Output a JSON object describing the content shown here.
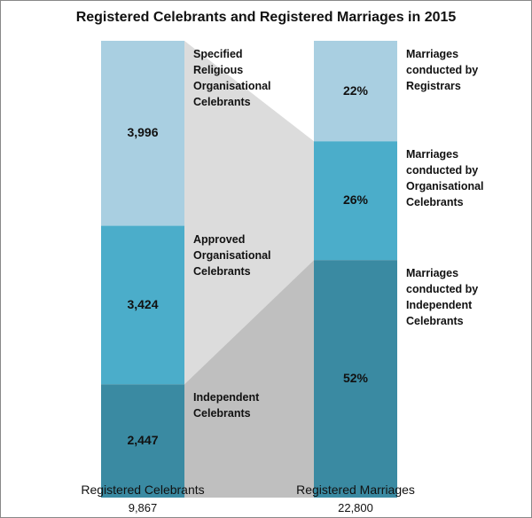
{
  "chart_data": {
    "type": "stacked_bar_100",
    "title": "Registered Celebrants and Registered Marriages in 2015",
    "bars": [
      {
        "label": "Registered Celebrants",
        "total": 9867,
        "total_label": "9,867",
        "segments": [
          {
            "name": "Specified Religious Organisational Celebrants",
            "value": 3996,
            "value_label": "3,996",
            "color": "#a9cfe1"
          },
          {
            "name": "Approved Organisational Celebrants",
            "value": 3424,
            "value_label": "3,424",
            "color": "#4badca"
          },
          {
            "name": "Independent Celebrants",
            "value": 2447,
            "value_label": "2,447",
            "color": "#3a8aa2"
          }
        ]
      },
      {
        "label": "Registered Marriages",
        "total": 22800,
        "total_label": "22,800",
        "segments": [
          {
            "name": "Marriages conducted by Registrars",
            "value": 22,
            "value_label": "22%",
            "color": "#a9cfe1"
          },
          {
            "name": "Marriages conducted by Organisational Celebrants",
            "value": 26,
            "value_label": "26%",
            "color": "#4badca"
          },
          {
            "name": "Marriages conducted by Independent Celebrants",
            "value": 52,
            "value_label": "52%",
            "color": "#3a8aa2"
          }
        ]
      }
    ]
  }
}
